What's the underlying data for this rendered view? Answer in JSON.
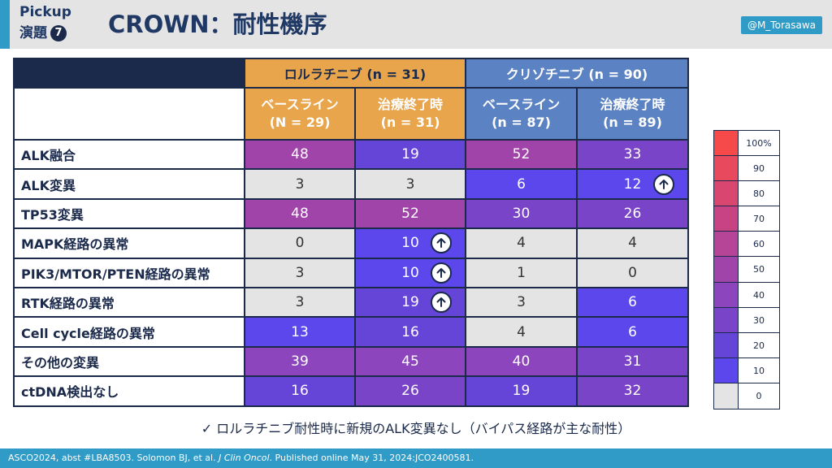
{
  "header": {
    "pickup": "Pickup",
    "pickup_sub": "演題",
    "pickup_number": "7",
    "title": "CROWN：耐性機序",
    "handle": "@M_Torasawa"
  },
  "table": {
    "group_lorlatinib": "ロルラチニブ (n = 31)",
    "group_crizotinib": "クリゾチニブ (n = 90)",
    "subheaders": [
      {
        "line1": "ベースライン",
        "line2": "(N = 29)"
      },
      {
        "line1": "治療終了時",
        "line2": "(n = 31)"
      },
      {
        "line1": "ベースライン",
        "line2": "(n = 87)"
      },
      {
        "line1": "治療終了時",
        "line2": "(n = 89)"
      }
    ],
    "rows": [
      {
        "label": "ALK融合",
        "values": [
          "48",
          "19",
          "52",
          "33"
        ]
      },
      {
        "label": "ALK変異",
        "values": [
          "3",
          "3",
          "6",
          "12"
        ]
      },
      {
        "label": "TP53変異",
        "values": [
          "48",
          "52",
          "30",
          "26"
        ]
      },
      {
        "label": "MAPK経路の異常",
        "values": [
          "0",
          "10",
          "4",
          "4"
        ]
      },
      {
        "label": "PIK3/MTOR/PTEN経路の異常",
        "values": [
          "3",
          "10",
          "1",
          "0"
        ]
      },
      {
        "label": "RTK経路の異常",
        "values": [
          "3",
          "19",
          "3",
          "6"
        ]
      },
      {
        "label": "Cell cycle経路の異常",
        "values": [
          "13",
          "16",
          "4",
          "6"
        ]
      },
      {
        "label": "その他の変異",
        "values": [
          "39",
          "45",
          "40",
          "31"
        ]
      },
      {
        "label": "ctDNA検出なし",
        "values": [
          "16",
          "26",
          "19",
          "32"
        ]
      }
    ],
    "up_arrow_icons": [
      "arrow-up-icon"
    ]
  },
  "colors": {
    "c0": "#e4e4e4",
    "c10": "#5b47ec",
    "c20": "#6545d8",
    "c30": "#7a44c8",
    "c40": "#8c45bc",
    "c50": "#a044aa",
    "c60": "#b64497",
    "c70": "#c84384",
    "c80": "#d94670",
    "c90": "#e8495c",
    "c100": "#f64a4a"
  },
  "note": "✓ ロルラチニブ耐性時に新規のALK変異なし（バイパス経路が主な耐性）",
  "legend": [
    "100%",
    "90",
    "80",
    "70",
    "60",
    "50",
    "40",
    "30",
    "20",
    "10",
    "0"
  ],
  "footer": {
    "prefix": "ASCO2024, abst #LBA8503. Solomon BJ, et al. ",
    "journal": "J Clin Oncol",
    "suffix": ". Published online May 31, 2024:JCO2400581."
  }
}
